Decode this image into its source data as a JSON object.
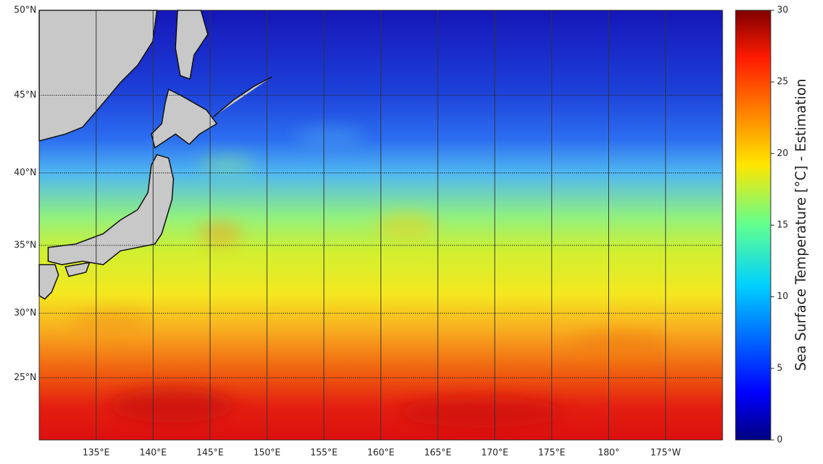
{
  "map": {
    "lat_labels": [
      {
        "value": 50,
        "label": "50°N"
      },
      {
        "value": 45,
        "label": "45°N"
      },
      {
        "value": 40,
        "label": "40°N"
      },
      {
        "value": 35,
        "label": "35°N"
      },
      {
        "value": 30,
        "label": "30°N"
      },
      {
        "value": 25,
        "label": "25°N"
      }
    ],
    "lon_labels": [
      {
        "value": 135,
        "label": "135°E"
      },
      {
        "value": 140,
        "label": "140°E"
      },
      {
        "value": 145,
        "label": "145°E"
      },
      {
        "value": 150,
        "label": "150°E"
      },
      {
        "value": 155,
        "label": "155°E"
      },
      {
        "value": 160,
        "label": "160°E"
      },
      {
        "value": 165,
        "label": "165°E"
      },
      {
        "value": 170,
        "label": "170°E"
      },
      {
        "value": 175,
        "label": "175°E"
      },
      {
        "value": 180,
        "label": "180°"
      },
      {
        "value": 185,
        "label": "175°W"
      }
    ],
    "xlim": [
      130,
      190
    ],
    "ylim": [
      20,
      50
    ]
  },
  "colorbar": {
    "label": "Sea Surface Temperature [°C] - Estimation",
    "range": [
      0,
      30
    ],
    "ticks": [
      0,
      5,
      10,
      15,
      20,
      25,
      30
    ]
  }
}
